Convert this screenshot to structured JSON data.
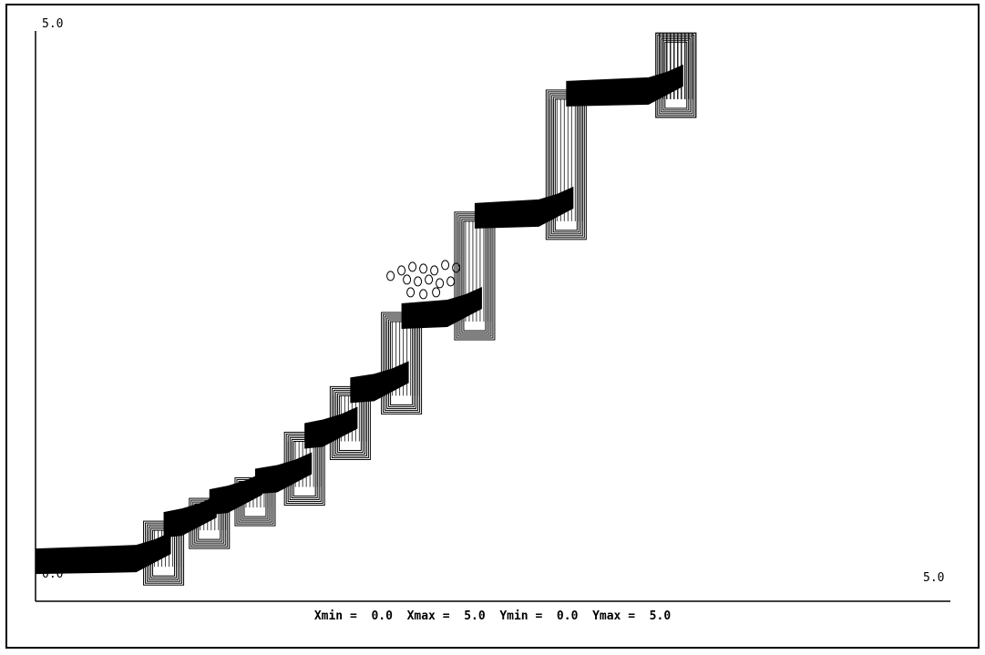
{
  "chart_data": {
    "type": "line",
    "title": "",
    "xlabel": "",
    "ylabel": "",
    "xlim": [
      0.0,
      5.0
    ],
    "ylim": [
      0.0,
      5.0
    ],
    "grid": false,
    "labels": {
      "y_top": "5.0",
      "origin": "0.0",
      "x_right": "5.0",
      "range_readout": "Xmin =  0.0  Xmax =  5.0  Ymin =  0.0  Ymax =  5.0"
    },
    "series": [
      {
        "style": "staircase-band",
        "color": "#000000",
        "steps": [
          {
            "x0": 0.0,
            "x1": 0.7,
            "y": 0.35,
            "rise_to": 0.67
          },
          {
            "x1": 0.95,
            "y": 0.67,
            "rise_to": 0.87
          },
          {
            "x1": 1.2,
            "y": 0.87,
            "rise_to": 1.05
          },
          {
            "x1": 1.47,
            "y": 1.05,
            "rise_to": 1.45
          },
          {
            "x1": 1.72,
            "y": 1.45,
            "rise_to": 1.85
          },
          {
            "x1": 2.0,
            "y": 1.85,
            "rise_to": 2.5
          },
          {
            "x1": 2.4,
            "y": 2.5,
            "rise_to": 3.38
          },
          {
            "x1": 2.9,
            "y": 3.38,
            "rise_to": 4.45
          },
          {
            "x1": 3.5,
            "y": 4.45,
            "rise_to": 4.95
          }
        ],
        "cluster": {
          "x": 2.0,
          "y": 2.9
        }
      }
    ]
  }
}
